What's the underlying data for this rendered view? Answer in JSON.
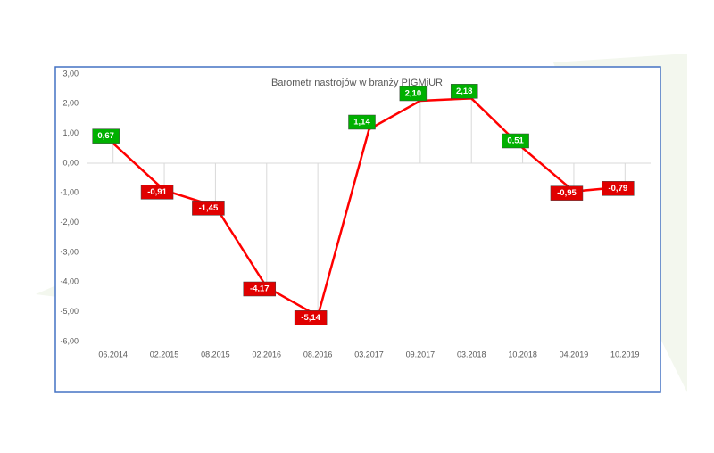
{
  "chart_data": {
    "type": "line",
    "title": "Barometr nastrojów w branży PIGMiUR",
    "categories": [
      "06.2014",
      "02.2015",
      "08.2015",
      "02.2016",
      "08.2016",
      "03.2017",
      "09.2017",
      "03.2018",
      "10.2018",
      "04.2019",
      "10.2019"
    ],
    "values": [
      0.67,
      -0.91,
      -1.45,
      -4.17,
      -5.14,
      1.14,
      2.1,
      2.18,
      0.51,
      -0.95,
      -0.79
    ],
    "value_labels": [
      "0,67",
      "-0,91",
      "-1,45",
      "-4,17",
      "-5,14",
      "1,14",
      "2,10",
      "2,18",
      "0,51",
      "-0,95",
      "-0,79"
    ],
    "color": "#ff0000",
    "positive_label_color": "#00b000",
    "negative_label_color": "#e00000",
    "ylim": [
      -6,
      3
    ],
    "yticks": [
      {
        "value": 3,
        "label": "3,00"
      },
      {
        "value": 2,
        "label": "2,00"
      },
      {
        "value": 1,
        "label": "1,00"
      },
      {
        "value": 0,
        "label": "0,00"
      },
      {
        "value": -1,
        "label": "-1,00"
      },
      {
        "value": -2,
        "label": "-2,00"
      },
      {
        "value": -3,
        "label": "-3,00"
      },
      {
        "value": -4,
        "label": "-4,00"
      },
      {
        "value": -5,
        "label": "-5,00"
      },
      {
        "value": -6,
        "label": "-6,00"
      }
    ],
    "drop_lines": true
  }
}
